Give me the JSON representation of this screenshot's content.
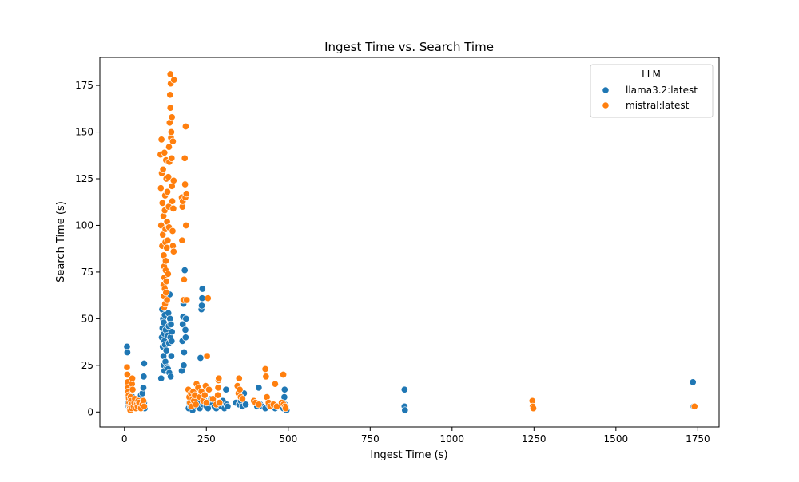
{
  "chart_data": {
    "type": "scatter",
    "title": "Ingest Time vs. Search Time",
    "xlabel": "Ingest Time (s)",
    "ylabel": "Search Time (s)",
    "xlim": [
      -75,
      1815
    ],
    "ylim": [
      -8,
      190
    ],
    "xticks": [
      0,
      250,
      500,
      750,
      1000,
      1250,
      1500,
      1750
    ],
    "yticks": [
      0,
      25,
      50,
      75,
      100,
      125,
      150,
      175
    ],
    "grid": false,
    "legend": {
      "title": "LLM",
      "placement": "top-right",
      "entries": [
        "llama3.2:latest",
        "mistral:latest"
      ]
    },
    "series": [
      {
        "name": "llama3.2:latest",
        "color": "#1f77b4",
        "points": [
          [
            8,
            35
          ],
          [
            9,
            32
          ],
          [
            10,
            12
          ],
          [
            11,
            8
          ],
          [
            12,
            5
          ],
          [
            13,
            3
          ],
          [
            14,
            10
          ],
          [
            15,
            6
          ],
          [
            16,
            4
          ],
          [
            17,
            9
          ],
          [
            18,
            2
          ],
          [
            19,
            7
          ],
          [
            20,
            5
          ],
          [
            22,
            3
          ],
          [
            25,
            8
          ],
          [
            28,
            6
          ],
          [
            30,
            4
          ],
          [
            35,
            7
          ],
          [
            40,
            3
          ],
          [
            45,
            5
          ],
          [
            50,
            9
          ],
          [
            55,
            10
          ],
          [
            58,
            13
          ],
          [
            59,
            19
          ],
          [
            60,
            26
          ],
          [
            60,
            5
          ],
          [
            62,
            2
          ],
          [
            112,
            18
          ],
          [
            114,
            40
          ],
          [
            115,
            55
          ],
          [
            116,
            45
          ],
          [
            117,
            35
          ],
          [
            118,
            50
          ],
          [
            119,
            30
          ],
          [
            120,
            48
          ],
          [
            120,
            25
          ],
          [
            121,
            42
          ],
          [
            122,
            38
          ],
          [
            122,
            22
          ],
          [
            123,
            52
          ],
          [
            124,
            36
          ],
          [
            125,
            27
          ],
          [
            126,
            44
          ],
          [
            128,
            33
          ],
          [
            130,
            24
          ],
          [
            132,
            41
          ],
          [
            133,
            23
          ],
          [
            134,
            53
          ],
          [
            135,
            46
          ],
          [
            136,
            37
          ],
          [
            137,
            21
          ],
          [
            138,
            63
          ],
          [
            139,
            50
          ],
          [
            140,
            40
          ],
          [
            141,
            19
          ],
          [
            142,
            47
          ],
          [
            143,
            30
          ],
          [
            144,
            38
          ],
          [
            145,
            43
          ],
          [
            175,
            22
          ],
          [
            177,
            38
          ],
          [
            178,
            47
          ],
          [
            179,
            51
          ],
          [
            180,
            58
          ],
          [
            181,
            25
          ],
          [
            182,
            32
          ],
          [
            183,
            71
          ],
          [
            184,
            76
          ],
          [
            185,
            60
          ],
          [
            186,
            44
          ],
          [
            187,
            40
          ],
          [
            188,
            50
          ],
          [
            196,
            2
          ],
          [
            198,
            5
          ],
          [
            200,
            8
          ],
          [
            202,
            3
          ],
          [
            205,
            6
          ],
          [
            208,
            1
          ],
          [
            210,
            4
          ],
          [
            215,
            7
          ],
          [
            220,
            3
          ],
          [
            225,
            5
          ],
          [
            230,
            2
          ],
          [
            232,
            29
          ],
          [
            235,
            55
          ],
          [
            236,
            57
          ],
          [
            237,
            61
          ],
          [
            238,
            66
          ],
          [
            240,
            4
          ],
          [
            245,
            6
          ],
          [
            250,
            3
          ],
          [
            255,
            2
          ],
          [
            260,
            5
          ],
          [
            265,
            7
          ],
          [
            275,
            3
          ],
          [
            280,
            2
          ],
          [
            285,
            4
          ],
          [
            290,
            5
          ],
          [
            295,
            3
          ],
          [
            300,
            6
          ],
          [
            305,
            2
          ],
          [
            310,
            12
          ],
          [
            312,
            4
          ],
          [
            315,
            3
          ],
          [
            340,
            5
          ],
          [
            350,
            4
          ],
          [
            355,
            6
          ],
          [
            360,
            3
          ],
          [
            365,
            10
          ],
          [
            370,
            4
          ],
          [
            400,
            5
          ],
          [
            405,
            3
          ],
          [
            410,
            13
          ],
          [
            415,
            4
          ],
          [
            420,
            3
          ],
          [
            430,
            2
          ],
          [
            440,
            4
          ],
          [
            450,
            3
          ],
          [
            460,
            2
          ],
          [
            470,
            3
          ],
          [
            480,
            5
          ],
          [
            485,
            2
          ],
          [
            488,
            8
          ],
          [
            489,
            12
          ],
          [
            490,
            4
          ],
          [
            492,
            3
          ],
          [
            495,
            1
          ],
          [
            855,
            12
          ],
          [
            855,
            3
          ],
          [
            856,
            1
          ],
          [
            1735,
            16
          ],
          [
            1736,
            3
          ],
          [
            1737,
            3
          ]
        ]
      },
      {
        "name": "mistral:latest",
        "color": "#ff7f0e",
        "points": [
          [
            8,
            24
          ],
          [
            9,
            20
          ],
          [
            10,
            16
          ],
          [
            11,
            13
          ],
          [
            12,
            11
          ],
          [
            13,
            9
          ],
          [
            14,
            7
          ],
          [
            15,
            5
          ],
          [
            16,
            3
          ],
          [
            17,
            2
          ],
          [
            18,
            1
          ],
          [
            19,
            8
          ],
          [
            20,
            6
          ],
          [
            21,
            4
          ],
          [
            22,
            2
          ],
          [
            23,
            15
          ],
          [
            24,
            18
          ],
          [
            25,
            12
          ],
          [
            28,
            3
          ],
          [
            30,
            5
          ],
          [
            32,
            7
          ],
          [
            35,
            2
          ],
          [
            38,
            4
          ],
          [
            40,
            3
          ],
          [
            42,
            6
          ],
          [
            45,
            5
          ],
          [
            50,
            2
          ],
          [
            55,
            4
          ],
          [
            58,
            6
          ],
          [
            60,
            3
          ],
          [
            110,
            138
          ],
          [
            111,
            120
          ],
          [
            112,
            100
          ],
          [
            113,
            146
          ],
          [
            114,
            128
          ],
          [
            115,
            89
          ],
          [
            116,
            112
          ],
          [
            117,
            95
          ],
          [
            118,
            130
          ],
          [
            119,
            105
          ],
          [
            119,
            68
          ],
          [
            120,
            84
          ],
          [
            120,
            62
          ],
          [
            121,
            78
          ],
          [
            121,
            56
          ],
          [
            122,
            139
          ],
          [
            122,
            72
          ],
          [
            123,
            108
          ],
          [
            123,
            66
          ],
          [
            124,
            116
          ],
          [
            124,
            58
          ],
          [
            125,
            98
          ],
          [
            125,
            91
          ],
          [
            126,
            76
          ],
          [
            126,
            81
          ],
          [
            127,
            64
          ],
          [
            127,
            135
          ],
          [
            128,
            125
          ],
          [
            128,
            70
          ],
          [
            129,
            88
          ],
          [
            130,
            102
          ],
          [
            130,
            60
          ],
          [
            131,
            118
          ],
          [
            132,
            92
          ],
          [
            133,
            74
          ],
          [
            134,
            126
          ],
          [
            135,
            110
          ],
          [
            136,
            99
          ],
          [
            136,
            142
          ],
          [
            137,
            134
          ],
          [
            138,
            155
          ],
          [
            139,
            170
          ],
          [
            140,
            181
          ],
          [
            140,
            163
          ],
          [
            141,
            176
          ],
          [
            142,
            147
          ],
          [
            143,
            150
          ],
          [
            144,
            136
          ],
          [
            145,
            158
          ],
          [
            145,
            121
          ],
          [
            146,
            113
          ],
          [
            147,
            97
          ],
          [
            148,
            89
          ],
          [
            148,
            145
          ],
          [
            149,
            109
          ],
          [
            150,
            124
          ],
          [
            150,
            86
          ],
          [
            151,
            178
          ],
          [
            175,
            115
          ],
          [
            176,
            92
          ],
          [
            177,
            110
          ],
          [
            178,
            113
          ],
          [
            179,
            60
          ],
          [
            180,
            60
          ],
          [
            182,
            71
          ],
          [
            184,
            136
          ],
          [
            185,
            122
          ],
          [
            186,
            115
          ],
          [
            187,
            153
          ],
          [
            188,
            100
          ],
          [
            189,
            117
          ],
          [
            190,
            60
          ],
          [
            195,
            12
          ],
          [
            198,
            8
          ],
          [
            200,
            5
          ],
          [
            203,
            10
          ],
          [
            205,
            3
          ],
          [
            208,
            7
          ],
          [
            210,
            11
          ],
          [
            212,
            6
          ],
          [
            215,
            9
          ],
          [
            218,
            4
          ],
          [
            220,
            15
          ],
          [
            225,
            13
          ],
          [
            230,
            8
          ],
          [
            235,
            11
          ],
          [
            240,
            6
          ],
          [
            245,
            9
          ],
          [
            248,
            14
          ],
          [
            250,
            5
          ],
          [
            252,
            30
          ],
          [
            255,
            61
          ],
          [
            258,
            12
          ],
          [
            270,
            7
          ],
          [
            280,
            4
          ],
          [
            285,
            9
          ],
          [
            286,
            13
          ],
          [
            287,
            17
          ],
          [
            288,
            18
          ],
          [
            290,
            5
          ],
          [
            345,
            14
          ],
          [
            348,
            10
          ],
          [
            350,
            18
          ],
          [
            352,
            12
          ],
          [
            355,
            8
          ],
          [
            360,
            7
          ],
          [
            395,
            6
          ],
          [
            400,
            5
          ],
          [
            410,
            4
          ],
          [
            430,
            23
          ],
          [
            432,
            19
          ],
          [
            435,
            8
          ],
          [
            440,
            5
          ],
          [
            445,
            3
          ],
          [
            455,
            4
          ],
          [
            460,
            15
          ],
          [
            465,
            3
          ],
          [
            480,
            5
          ],
          [
            485,
            20
          ],
          [
            486,
            4
          ],
          [
            490,
            3
          ],
          [
            492,
            2
          ],
          [
            1245,
            6
          ],
          [
            1246,
            3
          ],
          [
            1248,
            2
          ],
          [
            1740,
            3
          ]
        ]
      }
    ]
  }
}
